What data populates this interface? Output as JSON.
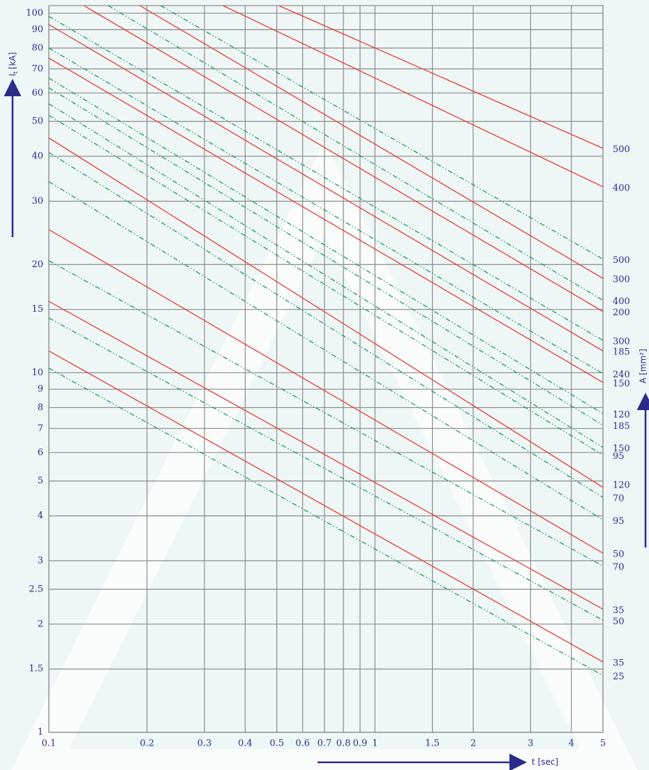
{
  "chart_data": {
    "type": "line",
    "y_label": {
      "symbol": "I",
      "subscript": "t",
      "unit": "[kA]"
    },
    "x_label": "t [sec]",
    "y2_label": "A [mm²]",
    "log_x": true,
    "log_y": true,
    "grid": true,
    "xlim": [
      0.1,
      5
    ],
    "ylim": [
      1,
      105
    ],
    "xticks": [
      0.1,
      0.2,
      0.3,
      0.4,
      0.5,
      0.6,
      0.7,
      0.8,
      0.9,
      1,
      1.5,
      2,
      3,
      4,
      5
    ],
    "yticks": [
      1,
      1.5,
      2,
      2.5,
      3,
      4,
      5,
      6,
      7,
      8,
      9,
      10,
      15,
      20,
      30,
      40,
      50,
      60,
      70,
      80,
      90,
      100
    ],
    "series": [
      {
        "color": "#e23b36",
        "style": "solid",
        "x": [
          0.1,
          5
        ],
        "values": [
          11.5,
          1.57
        ]
      },
      {
        "color": "#e23b36",
        "style": "solid",
        "x": [
          0.1,
          5
        ],
        "values": [
          15.8,
          2.2
        ]
      },
      {
        "color": "#e23b36",
        "style": "solid",
        "x": [
          0.1,
          5
        ],
        "values": [
          25,
          3.15
        ]
      },
      {
        "color": "#e23b36",
        "style": "solid",
        "x": [
          0.1,
          5
        ],
        "values": [
          45,
          4.8
        ]
      },
      {
        "color": "#e23b36",
        "style": "solid",
        "x": [
          0.1,
          5
        ],
        "values": [
          75,
          9.4
        ]
      },
      {
        "color": "#e23b36",
        "style": "solid",
        "x": [
          0.1,
          5
        ],
        "values": [
          93,
          11.5
        ]
      },
      {
        "color": "#e23b36",
        "style": "solid",
        "x": [
          0.128,
          5
        ],
        "values": [
          105,
          14.8
        ]
      },
      {
        "color": "#e23b36",
        "style": "solid",
        "x": [
          0.19,
          5
        ],
        "values": [
          105,
          18.3
        ]
      },
      {
        "color": "#e23b36",
        "style": "solid",
        "x": [
          0.342,
          5
        ],
        "values": [
          105,
          32.9
        ]
      },
      {
        "color": "#e23b36",
        "style": "solid",
        "x": [
          0.507,
          5
        ],
        "values": [
          105,
          42.1
        ]
      },
      {
        "color": "#1f9a5c",
        "style": "dashdot",
        "x": [
          0.1,
          5
        ],
        "values": [
          10.3,
          1.44
        ]
      },
      {
        "color": "#1f9a5c",
        "style": "dashdot",
        "x": [
          0.1,
          5
        ],
        "values": [
          14.2,
          2.05
        ]
      },
      {
        "color": "#1f9a5c",
        "style": "dashdot",
        "x": [
          0.1,
          5
        ],
        "values": [
          20.5,
          2.9
        ]
      },
      {
        "color": "#1f9a5c",
        "style": "dashdot",
        "x": [
          0.1,
          5
        ],
        "values": [
          34,
          3.9
        ]
      },
      {
        "color": "#1f9a5c",
        "style": "dashdot",
        "x": [
          0.1,
          5
        ],
        "values": [
          41,
          4.5
        ]
      },
      {
        "color": "#1f9a5c",
        "style": "dashdot",
        "x": [
          0.1,
          5
        ],
        "values": [
          52,
          5.9
        ]
      },
      {
        "color": "#1f9a5c",
        "style": "dashdot",
        "x": [
          0.1,
          5
        ],
        "values": [
          56,
          6.2
        ]
      },
      {
        "color": "#1f9a5c",
        "style": "dashdot",
        "x": [
          0.1,
          5
        ],
        "values": [
          62,
          7.15
        ]
      },
      {
        "color": "#1f9a5c",
        "style": "dashdot",
        "x": [
          0.1,
          5
        ],
        "values": [
          66,
          7.7
        ]
      },
      {
        "color": "#1f9a5c",
        "style": "dashdot",
        "x": [
          0.1,
          5
        ],
        "values": [
          80,
          9.95
        ]
      },
      {
        "color": "#1f9a5c",
        "style": "dashdot",
        "x": [
          0.1,
          5
        ],
        "values": [
          98,
          12.3
        ]
      },
      {
        "color": "#1f9a5c",
        "style": "dashdot",
        "x": [
          0.152,
          5
        ],
        "values": [
          105,
          15.9
        ]
      },
      {
        "color": "#1f9a5c",
        "style": "dashdot",
        "x": [
          0.22,
          5
        ],
        "values": [
          105,
          20.7
        ]
      }
    ],
    "right_labels": [
      {
        "value": 42.1,
        "label": "500"
      },
      {
        "value": 32.9,
        "label": "400"
      },
      {
        "value": 20.7,
        "label": "500"
      },
      {
        "value": 18.3,
        "label": "300"
      },
      {
        "value": 15.9,
        "label": "400"
      },
      {
        "value": 14.8,
        "label": "200"
      },
      {
        "value": 12.3,
        "label": "300"
      },
      {
        "value": 11.5,
        "label": "185"
      },
      {
        "value": 9.95,
        "label": "240"
      },
      {
        "value": 9.4,
        "label": "150"
      },
      {
        "value": 7.7,
        "label": "120"
      },
      {
        "value": 7.15,
        "label": "185"
      },
      {
        "value": 6.2,
        "label": "150"
      },
      {
        "value": 5.9,
        "label": "95"
      },
      {
        "value": 4.9,
        "label": "120"
      },
      {
        "value": 4.5,
        "label": "70"
      },
      {
        "value": 3.9,
        "label": "95"
      },
      {
        "value": 3.15,
        "label": "50"
      },
      {
        "value": 2.9,
        "label": "70"
      },
      {
        "value": 2.2,
        "label": "35"
      },
      {
        "value": 2.05,
        "label": "50"
      },
      {
        "value": 1.57,
        "label": "35"
      },
      {
        "value": 1.44,
        "label": "25"
      }
    ]
  }
}
